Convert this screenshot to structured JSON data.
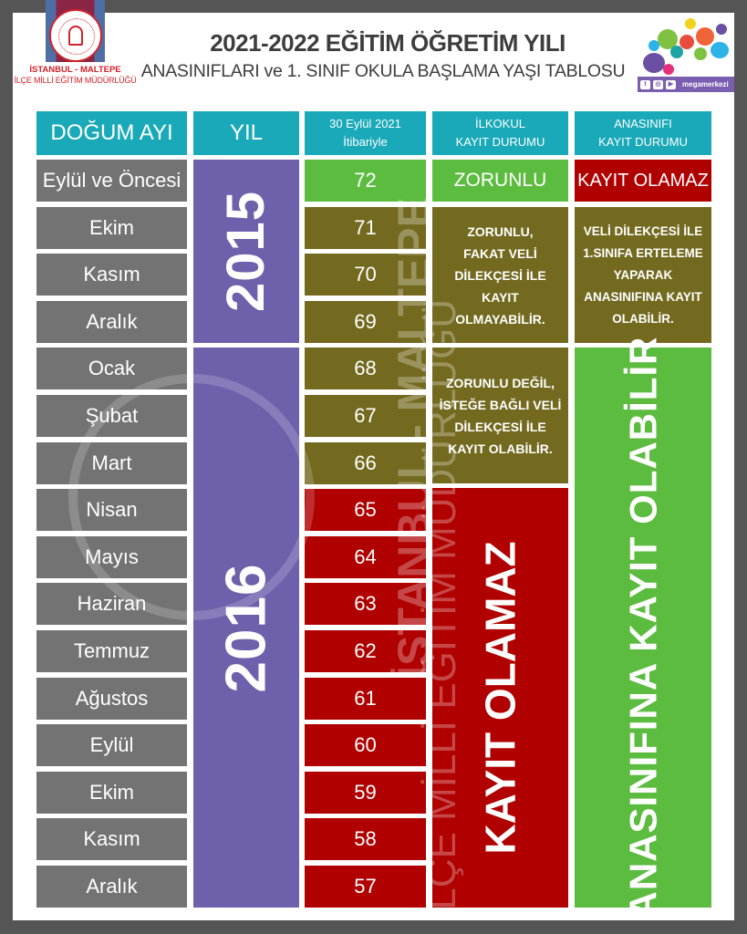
{
  "header": {
    "org_line1": "İSTANBUL - MALTEPE",
    "org_line2": "İLÇE MİLLİ EĞİTİM MÜDÜRLÜĞÜ",
    "title": "2021-2022 EĞİTİM ÖĞRETİM YILI",
    "subtitle": "ANASINIFLARI ve 1. SINIF OKULA BAŞLAMA YAŞI TABLOSU",
    "brand_handle": "megamerkezi"
  },
  "table": {
    "columns": {
      "month": "DOĞUM AYI",
      "year": "YIL",
      "age_line1": "30 Eylül 2021",
      "age_line2": "İtibariyle",
      "primary_line1": "İLKOKUL",
      "primary_line2": "KAYIT DURUMU",
      "preschool_line1": "ANASINIFI",
      "preschool_line2": "KAYIT DURUMU"
    },
    "rows": [
      {
        "month": "Eylül ve Öncesi",
        "age": "72"
      },
      {
        "month": "Ekim",
        "age": "71"
      },
      {
        "month": "Kasım",
        "age": "70"
      },
      {
        "month": "Aralık",
        "age": "69"
      },
      {
        "month": "Ocak",
        "age": "68"
      },
      {
        "month": "Şubat",
        "age": "67"
      },
      {
        "month": "Mart",
        "age": "66"
      },
      {
        "month": "Nisan",
        "age": "65"
      },
      {
        "month": "Mayıs",
        "age": "64"
      },
      {
        "month": "Haziran",
        "age": "63"
      },
      {
        "month": "Temmuz",
        "age": "62"
      },
      {
        "month": "Ağustos",
        "age": "61"
      },
      {
        "month": "Eylül",
        "age": "60"
      },
      {
        "month": "Ekim",
        "age": "59"
      },
      {
        "month": "Kasım",
        "age": "58"
      },
      {
        "month": "Aralık",
        "age": "57"
      }
    ],
    "years": {
      "y2015": "2015",
      "y2016": "2016"
    },
    "primary_status": {
      "mandatory": "ZORUNLU",
      "mandatory_opt": [
        "ZORUNLU,",
        "FAKAT VELİ",
        "DİLEKÇESİ İLE",
        "KAYIT",
        "OLMAYABİLİR."
      ],
      "optional": [
        "ZORUNLU DEĞİL,",
        "İSTEĞE BAĞLI VELİ",
        "DİLEKÇESİ İLE",
        "KAYIT OLABİLİR."
      ],
      "cannot": "KAYIT OLAMAZ"
    },
    "preschool_status": {
      "cannot": "KAYIT OLAMAZ",
      "deferral": [
        "VELİ DİLEKÇESİ İLE",
        "1.SINIFA ERTELEME",
        "YAPARAK",
        "ANASINIFINA KAYIT",
        "OLABİLİR."
      ],
      "can": "ANASINIFINA KAYIT OLABİLİR"
    }
  },
  "watermark": {
    "text1": "İSTANBUL - MALTEPE",
    "text2": "İLÇE MİLLİ EĞİTİM MÜDÜRLÜĞÜ"
  },
  "colors": {
    "header": "#19a9b8",
    "month": "#737373",
    "year": "#6f60ab",
    "green": "#5cbc3f",
    "olive": "#736a20",
    "red": "#b00000"
  }
}
